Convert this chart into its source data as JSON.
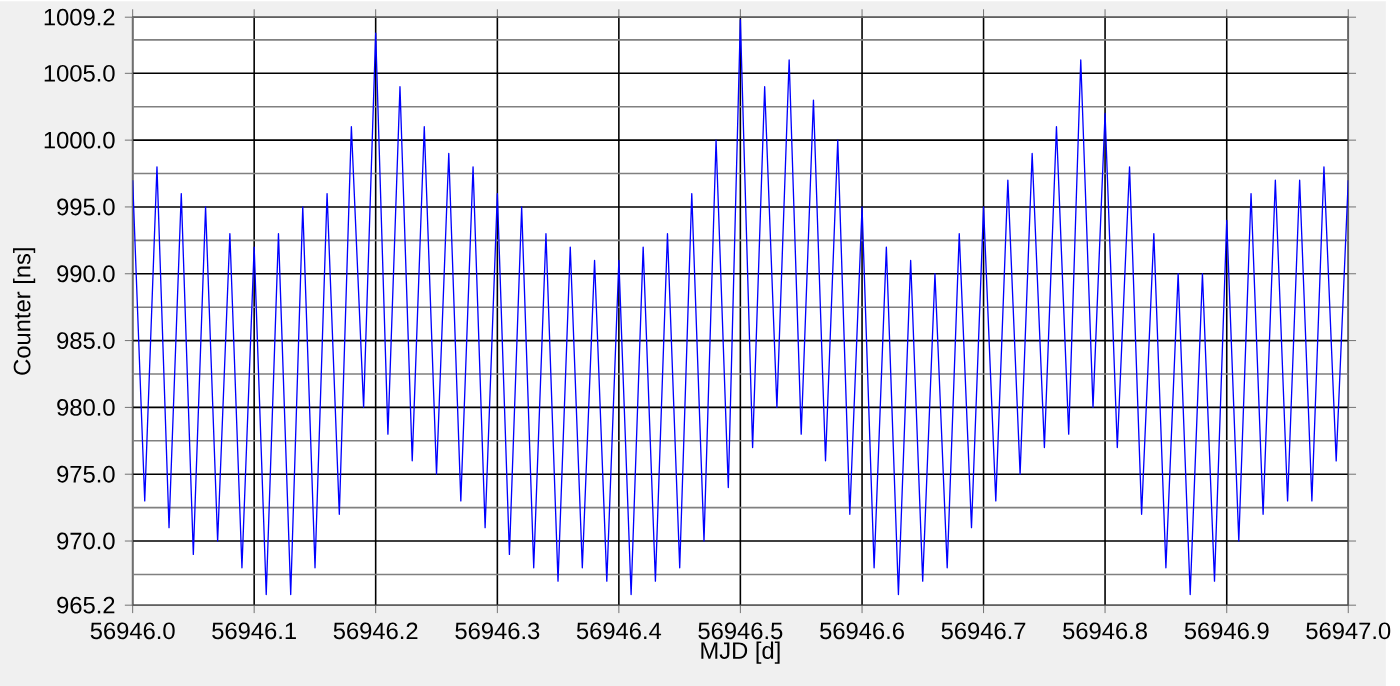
{
  "chart_data": {
    "type": "line",
    "xlabel": "MJD [d]",
    "ylabel": "Counter [ns]",
    "xlim": [
      56946.0,
      56947.0
    ],
    "xticks": [
      {
        "value": 56946.0,
        "label": "56946.0"
      },
      {
        "value": 56946.1,
        "label": "56946.1"
      },
      {
        "value": 56946.2,
        "label": "56946.2"
      },
      {
        "value": 56946.3,
        "label": "56946.3"
      },
      {
        "value": 56946.4,
        "label": "56946.4"
      },
      {
        "value": 56946.5,
        "label": "56946.5"
      },
      {
        "value": 56946.6,
        "label": "56946.6"
      },
      {
        "value": 56946.7,
        "label": "56946.7"
      },
      {
        "value": 56946.8,
        "label": "56946.8"
      },
      {
        "value": 56946.9,
        "label": "56946.9"
      },
      {
        "value": 56947.0,
        "label": "56947.0"
      }
    ],
    "ylim": [
      965.2,
      1009.2
    ],
    "yticks": [
      {
        "value": 965.2,
        "label": "965.2"
      },
      {
        "value": 967.5,
        "label": null
      },
      {
        "value": 970.0,
        "label": "970.0"
      },
      {
        "value": 972.5,
        "label": null
      },
      {
        "value": 975.0,
        "label": "975.0"
      },
      {
        "value": 977.5,
        "label": null
      },
      {
        "value": 980.0,
        "label": "980.0"
      },
      {
        "value": 982.5,
        "label": null
      },
      {
        "value": 985.0,
        "label": "985.0"
      },
      {
        "value": 987.5,
        "label": null
      },
      {
        "value": 990.0,
        "label": "990.0"
      },
      {
        "value": 992.5,
        "label": null
      },
      {
        "value": 995.0,
        "label": "995.0"
      },
      {
        "value": 997.5,
        "label": null
      },
      {
        "value": 1000.0,
        "label": "1000.0"
      },
      {
        "value": 1002.5,
        "label": null
      },
      {
        "value": 1005.0,
        "label": "1005.0"
      },
      {
        "value": 1007.5,
        "label": null
      },
      {
        "value": 1009.2,
        "label": "1009.2"
      }
    ],
    "grid": true,
    "marker": "none",
    "line_style": "solid",
    "series": [
      {
        "color": "#0000ff",
        "x": [
          56946.0,
          56946.01,
          56946.02,
          56946.03,
          56946.04,
          56946.05,
          56946.06,
          56946.07,
          56946.08,
          56946.09,
          56946.1,
          56946.11,
          56946.12,
          56946.13,
          56946.14,
          56946.15,
          56946.16,
          56946.17,
          56946.18,
          56946.19,
          56946.2,
          56946.21,
          56946.22,
          56946.23,
          56946.24,
          56946.25,
          56946.26,
          56946.27,
          56946.28,
          56946.29,
          56946.3,
          56946.31,
          56946.32,
          56946.33,
          56946.34,
          56946.35,
          56946.36,
          56946.37,
          56946.38,
          56946.39,
          56946.4,
          56946.41,
          56946.42,
          56946.43,
          56946.44,
          56946.45,
          56946.46,
          56946.47,
          56946.48,
          56946.49,
          56946.5,
          56946.51,
          56946.52,
          56946.53,
          56946.54,
          56946.55,
          56946.56,
          56946.57,
          56946.58,
          56946.59,
          56946.6,
          56946.61,
          56946.62,
          56946.63,
          56946.64,
          56946.65,
          56946.66,
          56946.67,
          56946.68,
          56946.69,
          56946.7,
          56946.71,
          56946.72,
          56946.73,
          56946.74,
          56946.75,
          56946.76,
          56946.77,
          56946.78,
          56946.79,
          56946.8,
          56946.81,
          56946.82,
          56946.83,
          56946.84,
          56946.85,
          56946.86,
          56946.87,
          56946.88,
          56946.89,
          56946.9,
          56946.91,
          56946.92,
          56946.93,
          56946.94,
          56946.95,
          56946.96,
          56946.97,
          56946.98,
          56946.99,
          56947.0
        ],
        "values": [
          997,
          973,
          998,
          971,
          996,
          969,
          995,
          970,
          993,
          968,
          992,
          966,
          993,
          966,
          995,
          968,
          996,
          972,
          1001,
          980,
          1008,
          978,
          1004,
          976,
          1001,
          975,
          999,
          973,
          998,
          971,
          996,
          969,
          995,
          968,
          993,
          967,
          992,
          968,
          991,
          967,
          991,
          966,
          992,
          967,
          993,
          968,
          996,
          970,
          1000,
          974,
          1009,
          977,
          1004,
          980,
          1006,
          978,
          1003,
          976,
          1000,
          972,
          995,
          968,
          992,
          966,
          991,
          967,
          990,
          968,
          993,
          971,
          995,
          973,
          997,
          975,
          999,
          977,
          1001,
          978,
          1006,
          980,
          1002,
          977,
          998,
          972,
          993,
          968,
          990,
          966,
          990,
          967,
          994,
          970,
          996,
          972,
          997,
          973,
          997,
          973,
          998,
          976,
          997
        ]
      }
    ]
  }
}
